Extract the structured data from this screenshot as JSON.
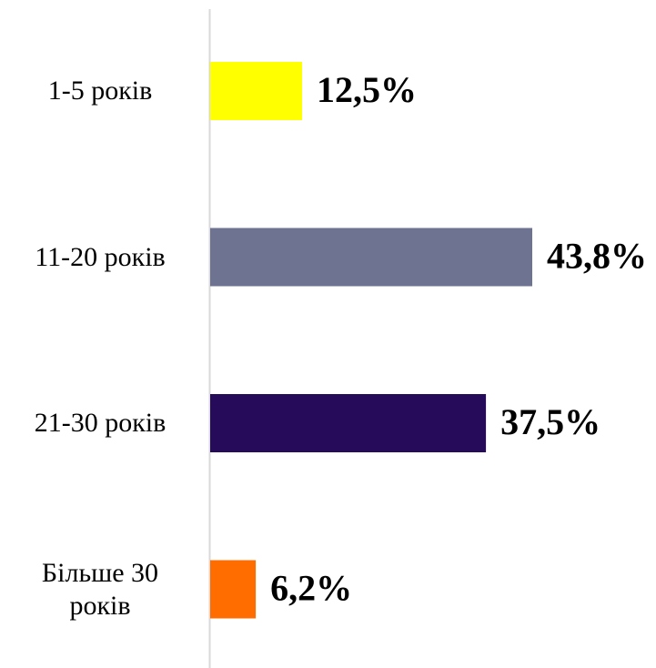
{
  "chart_data": {
    "type": "bar",
    "orientation": "horizontal",
    "categories": [
      "1-5 років",
      "11-20 років",
      "21-30 років",
      "Більше 30 років"
    ],
    "values": [
      12.5,
      43.8,
      37.5,
      6.2
    ],
    "value_labels": [
      "12,5%",
      "43,8%",
      "37,5%",
      "6,2%"
    ],
    "colors": [
      "#ffff00",
      "#6e7391",
      "#250b5a",
      "#ff6d00"
    ]
  }
}
